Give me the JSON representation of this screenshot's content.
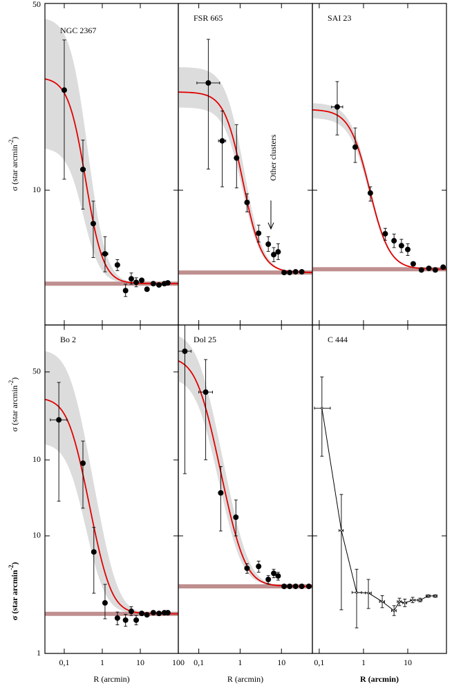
{
  "chart_data": [
    {
      "type": "scatter",
      "title": "NGC 2367",
      "xscale": "log",
      "yscale": "log",
      "xlim": [
        0.031,
        100
      ],
      "xticks": [
        {
          "value": 0.1,
          "label": "0,1"
        },
        1,
        10,
        100
      ],
      "xtick_labels": false,
      "ylim": [
        3.13,
        50
      ],
      "yticks": [
        10,
        50
      ],
      "ytick_labels": true,
      "ylabel": [
        "σ (star arcmin",
        "-2",
        ")"
      ],
      "x": [
        0.1,
        0.31,
        0.58,
        1.18,
        2.5,
        4.1,
        5.8,
        7.8,
        10.9,
        15,
        22,
        31,
        43,
        53
      ],
      "values": [
        23.7,
        11.96,
        7.5,
        5.78,
        5.25,
        4.21,
        4.66,
        4.52,
        4.6,
        4.26,
        4.47,
        4.42,
        4.47,
        4.5
      ],
      "y_low": [
        11.0,
        8.5,
        5.6,
        4.95,
        5.0,
        4.0,
        4.45,
        4.35,
        null,
        null,
        null,
        null,
        null,
        null
      ],
      "y_high": [
        36.5,
        15.4,
        9.1,
        6.7,
        5.5,
        4.45,
        4.9,
        4.7,
        null,
        null,
        null,
        null,
        null,
        null
      ],
      "x_low": [
        null,
        0.27,
        null,
        1.0,
        2.2,
        null,
        null,
        null,
        null,
        null,
        null,
        null,
        null,
        null
      ],
      "x_high": [
        null,
        0.36,
        null,
        1.4,
        2.8,
        null,
        null,
        null,
        null,
        null,
        null,
        null,
        null,
        null
      ],
      "fit": {
        "background": 4.47,
        "core_density": 22,
        "core_radius": 0.235,
        "core_density_low": 10,
        "core_density_high": 40
      },
      "color": "#000000",
      "fit_color": "#e00000",
      "band_color": "#dcdcdc",
      "background_color": "#bf8f8f"
    },
    {
      "type": "scatter",
      "title": "FSR 665",
      "xscale": "log",
      "yscale": "log",
      "xlim": [
        0.032,
        56
      ],
      "xticks": [
        {
          "value": 0.1,
          "label": "0,1"
        },
        1,
        10
      ],
      "xtick_labels": false,
      "ylim": [
        3.13,
        50
      ],
      "yticks": [
        10,
        50
      ],
      "ytick_labels": false,
      "annotation": "Other clusters",
      "x": [
        0.17,
        0.37,
        0.82,
        1.47,
        2.8,
        4.8,
        6.5,
        8.3,
        11.6,
        15.8,
        22,
        31
      ],
      "values": [
        25.2,
        15.3,
        13.2,
        9.0,
        6.9,
        6.28,
        5.74,
        5.88,
        4.92,
        4.92,
        4.95,
        4.95
      ],
      "y_low": [
        12,
        10.3,
        10.2,
        8.3,
        6.4,
        5.9,
        5.4,
        5.5,
        null,
        null,
        null,
        null
      ],
      "y_high": [
        36.7,
        19.8,
        17.6,
        9.7,
        7.4,
        6.7,
        6.1,
        6.3,
        null,
        null,
        null,
        null
      ],
      "x_low": [
        0.09,
        0.3,
        null,
        null,
        null,
        null,
        null,
        null,
        null,
        null,
        null,
        null
      ],
      "x_high": [
        0.32,
        0.45,
        null,
        null,
        null,
        null,
        null,
        null,
        null,
        null,
        null,
        null
      ],
      "fit": {
        "background": 4.92,
        "core_density": 18.4,
        "core_radius": 0.8,
        "core_density_low": 15.5,
        "core_density_high": 24
      },
      "color": "#000000",
      "fit_color": "#e00000",
      "band_color": "#dcdcdc",
      "background_color": "#bf8f8f"
    },
    {
      "type": "scatter",
      "title": "SAI  23",
      "xscale": "log",
      "yscale": "log",
      "xlim": [
        0.07,
        75
      ],
      "xticks": [
        {
          "value": 0.1,
          "label": "0,1"
        },
        1,
        10
      ],
      "xtick_labels": false,
      "ylim": [
        3.13,
        50
      ],
      "yticks": [
        10,
        50
      ],
      "ytick_labels": false,
      "x": [
        0.255,
        0.65,
        1.43,
        3.1,
        4.9,
        7.2,
        10,
        13.3,
        20.4,
        30,
        42,
        63
      ],
      "values": [
        20.5,
        14.5,
        9.76,
        6.87,
        6.47,
        6.2,
        6.0,
        5.3,
        5.03,
        5.1,
        5.03,
        5.15
      ],
      "y_low": [
        16.1,
        12.7,
        9.1,
        6.5,
        6.1,
        5.85,
        5.7,
        null,
        null,
        null,
        null,
        null
      ],
      "y_high": [
        25.5,
        17.1,
        10.3,
        7.2,
        6.85,
        6.55,
        6.3,
        null,
        null,
        null,
        null,
        null
      ],
      "x_low": [
        0.19,
        0.6,
        1.3,
        null,
        null,
        null,
        null,
        null,
        null,
        null,
        null,
        null
      ],
      "x_high": [
        0.34,
        0.7,
        1.55,
        null,
        null,
        null,
        null,
        null,
        null,
        null,
        null,
        null
      ],
      "fit": {
        "background": 5.06,
        "core_density": 15,
        "core_radius": 0.97,
        "core_density_low": 13.6,
        "core_density_high": 16.2
      },
      "color": "#000000",
      "fit_color": "#e00000",
      "band_color": "#dcdcdc",
      "background_color": "#bf8f8f"
    },
    {
      "type": "scatter",
      "title": "Bo 2",
      "xscale": "log",
      "yscale": "log",
      "xlim": [
        0.031,
        100
      ],
      "xticks": [
        {
          "value": 0.1,
          "label": "0,1"
        },
        1,
        10,
        100
      ],
      "xtick_labels": true,
      "xlabel": "R (arcmin)",
      "ylim": [
        1,
        622
      ],
      "yticks": [
        1,
        10
      ],
      "ytick_labels": true,
      "y2lim": [
        0.29,
        118
      ],
      "y2ticks": [
        10,
        50
      ],
      "ylabel": [
        "σ (star arcmin",
        "-2",
        ")"
      ],
      "ylabel_bold": true,
      "y2label": [
        "σ (star arcmin",
        "-2",
        ")"
      ],
      "x": [
        0.072,
        0.31,
        0.6,
        1.18,
        2.5,
        4.1,
        5.8,
        7.8,
        10.9,
        15,
        22,
        31,
        43,
        53
      ],
      "values": [
        97,
        41.5,
        7.3,
        2.69,
        2.0,
        1.92,
        2.28,
        1.92,
        2.19,
        2.13,
        2.22,
        2.19,
        2.22,
        2.22
      ],
      "y_low": [
        19.7,
        17.2,
        3.25,
        1.97,
        1.75,
        1.7,
        2.1,
        1.75,
        null,
        null,
        null,
        null,
        null,
        null
      ],
      "y_high": [
        202,
        64,
        11.8,
        3.87,
        2.25,
        2.15,
        2.5,
        2.1,
        null,
        null,
        null,
        null,
        null,
        null
      ],
      "x_low": [
        0.043,
        null,
        null,
        null,
        null,
        null,
        null,
        null,
        null,
        null,
        null,
        null,
        null,
        null
      ],
      "x_high": [
        0.118,
        null,
        null,
        null,
        null,
        null,
        null,
        null,
        null,
        null,
        null,
        null,
        null,
        null
      ],
      "fit": {
        "background": 2.17,
        "core_density": 148,
        "core_radius": 0.16,
        "core_density_low": 60,
        "core_density_high": 385
      },
      "color": "#000000",
      "fit_color": "#e00000",
      "band_color": "#dcdcdc",
      "background_color": "#bf8f8f"
    },
    {
      "type": "scatter",
      "title": "Dol  25",
      "xscale": "log",
      "yscale": "log",
      "xlim": [
        0.032,
        56
      ],
      "xticks": [
        {
          "value": 0.1,
          "label": "0,1"
        },
        1,
        10
      ],
      "xtick_labels": true,
      "xlabel": "R (arcmin)",
      "ylim": [
        1,
        622
      ],
      "yticks": [
        1,
        10
      ],
      "ytick_labels": false,
      "x": [
        0.046,
        0.147,
        0.34,
        0.79,
        1.47,
        2.8,
        4.8,
        6.5,
        8.3,
        11.6,
        15.8,
        22,
        31,
        46
      ],
      "values": [
        372,
        167,
        23.2,
        14.4,
        5.3,
        5.5,
        4.26,
        4.8,
        4.56,
        3.72,
        3.72,
        3.72,
        3.72,
        3.72
      ],
      "y_low": [
        33.8,
        44.4,
        11,
        10,
        4.8,
        4.9,
        3.9,
        4.4,
        4.2,
        null,
        null,
        null,
        null,
        null
      ],
      "y_high": [
        700,
        316,
        38.9,
        20.2,
        5.8,
        6.1,
        4.6,
        5.2,
        4.9,
        null,
        null,
        null,
        null,
        null
      ],
      "x_low": [
        0.032,
        0.1,
        null,
        null,
        null,
        null,
        null,
        null,
        null,
        null,
        null,
        null,
        null,
        null
      ],
      "x_high": [
        0.065,
        0.215,
        null,
        null,
        null,
        null,
        null,
        null,
        null,
        null,
        null,
        null,
        null,
        null
      ],
      "fit": {
        "background": 3.72,
        "core_density": 330,
        "core_radius": 0.11,
        "core_density_low": 220,
        "core_density_high": 540
      },
      "color": "#000000",
      "fit_color": "#e00000",
      "band_color": "#dcdcdc",
      "background_color": "#bf8f8f"
    },
    {
      "type": "line",
      "title": "C 444",
      "xscale": "log",
      "yscale": "log",
      "xlim": [
        0.07,
        75
      ],
      "xticks": [
        {
          "value": 0.1,
          "label": "0,1"
        },
        1,
        10
      ],
      "xtick_labels": true,
      "xlabel": "R (arcmin)",
      "xlabel_bold": true,
      "ylim": [
        1,
        622
      ],
      "yticks": [
        1,
        10
      ],
      "ytick_labels": false,
      "x": [
        0.115,
        0.316,
        0.7,
        1.29,
        2.65,
        4.9,
        6.5,
        8.6,
        12.9,
        19,
        29,
        42
      ],
      "values": [
        122,
        11.1,
        3.3,
        3.27,
        2.76,
        2.31,
        2.76,
        2.69,
        2.84,
        2.84,
        3.08,
        3.08
      ],
      "y_low": [
        47.5,
        2.35,
        1.65,
        2.41,
        2.45,
        2.1,
        2.55,
        2.5,
        2.7,
        2.75,
        3.0,
        3.0
      ],
      "y_high": [
        225,
        22.5,
        5.2,
        4.26,
        3.1,
        2.55,
        2.95,
        2.9,
        3.0,
        2.95,
        3.15,
        3.15
      ],
      "x_low": [
        0.078,
        0.28,
        0.55,
        1.1,
        2.3,
        4.3,
        5.8,
        7.7,
        11.5,
        17,
        26,
        38
      ],
      "x_high": [
        0.178,
        0.35,
        0.9,
        1.5,
        3.0,
        5.5,
        7.2,
        9.5,
        14.5,
        21,
        32,
        46
      ],
      "color": "#000000"
    }
  ]
}
